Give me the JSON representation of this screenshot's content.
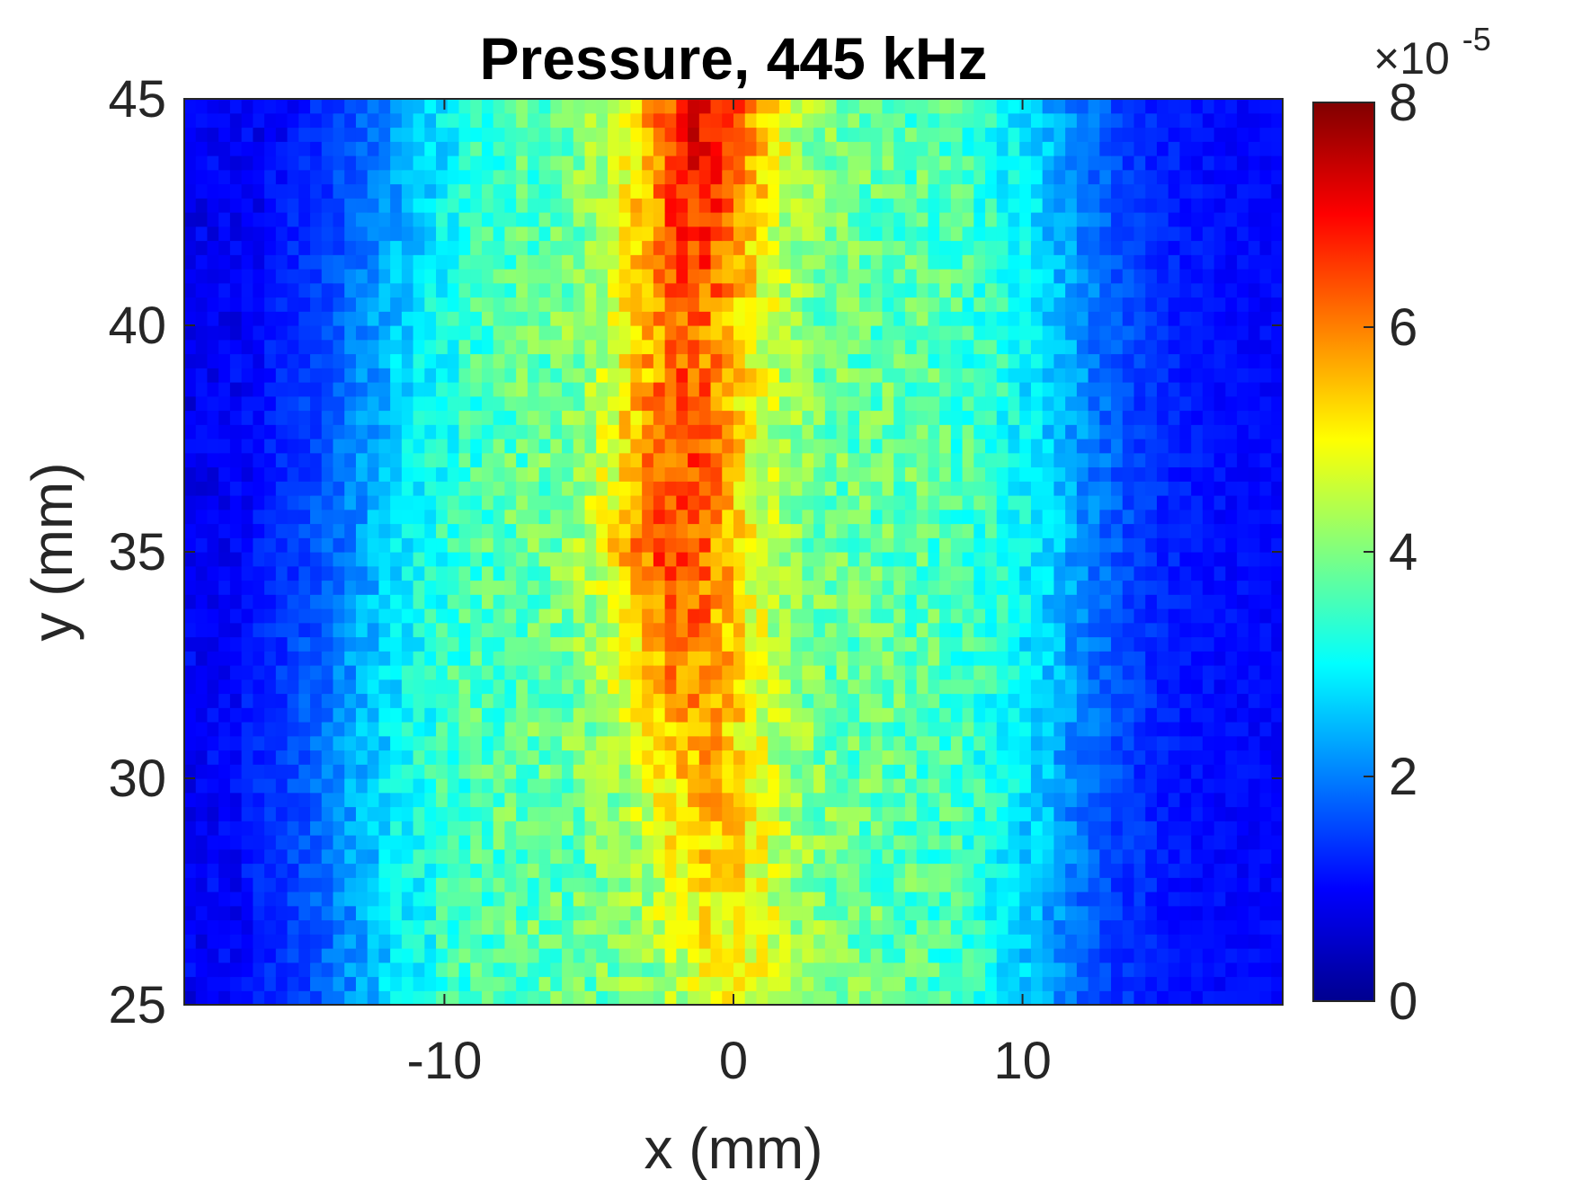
{
  "chart_data": {
    "type": "heatmap",
    "title": "Pressure, 445 kHz",
    "xlabel": "x (mm)",
    "ylabel": "y (mm)",
    "xlim": [
      -19,
      19
    ],
    "ylim": [
      25,
      45
    ],
    "xticks": [
      -10,
      0,
      10
    ],
    "yticks": [
      25,
      30,
      35,
      40,
      45
    ],
    "xtick_labels": [
      "-10",
      "0",
      "10"
    ],
    "ytick_labels": [
      "25",
      "30",
      "35",
      "40",
      "45"
    ],
    "colorbar": {
      "colormap": "jet",
      "clim": [
        0,
        8e-05
      ],
      "ticks": [
        0,
        2,
        4,
        6,
        8
      ],
      "tick_labels": [
        "0",
        "2",
        "4",
        "6",
        "8"
      ],
      "exponent_label": "×10",
      "exponent": "-5"
    },
    "z_scale": 1e-05,
    "field_profile": {
      "y": [
        25,
        30,
        35,
        40,
        45
      ],
      "beam_left_edge_x": [
        -12.5,
        -13.0,
        -12.5,
        -12.0,
        -11.0
      ],
      "beam_right_edge_x": [
        10.5,
        11.0,
        11.5,
        11.5,
        11.0
      ],
      "core_center_x": [
        0.0,
        -1.0,
        -2.0,
        -1.5,
        -1.0
      ],
      "core_peak_value": [
        4.8,
        5.5,
        6.5,
        6.2,
        7.2
      ],
      "plateau_value": 3.8,
      "background_value": 1.0
    }
  }
}
